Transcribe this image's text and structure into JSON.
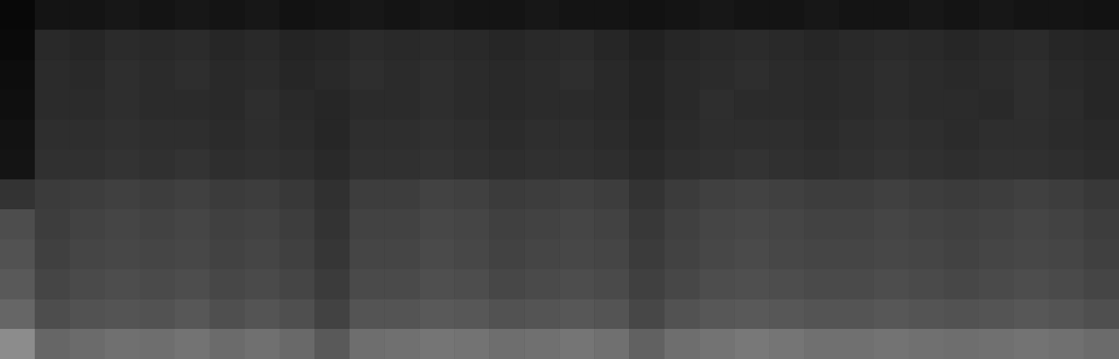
{
  "chart_data": {
    "type": "heatmap",
    "tick_labels": false,
    "color_range": [
      0,
      100
    ],
    "cells": [
      [
        3,
        8,
        8,
        9,
        8,
        9,
        8,
        9,
        7,
        8,
        9,
        8,
        9,
        8,
        8,
        9,
        8,
        8,
        7,
        8,
        9,
        8,
        8,
        9,
        8,
        8,
        9,
        8,
        9,
        8,
        8,
        7
      ],
      [
        4,
        16,
        15,
        17,
        16,
        17,
        15,
        16,
        14,
        15,
        17,
        16,
        17,
        16,
        15,
        16,
        17,
        15,
        13,
        15,
        16,
        17,
        16,
        15,
        16,
        17,
        16,
        15,
        16,
        17,
        15,
        14
      ],
      [
        5,
        17,
        16,
        18,
        17,
        18,
        16,
        17,
        15,
        16,
        18,
        17,
        18,
        17,
        16,
        17,
        18,
        16,
        14,
        16,
        17,
        18,
        17,
        16,
        17,
        18,
        17,
        16,
        17,
        18,
        16,
        15
      ],
      [
        6,
        17,
        17,
        18,
        17,
        17,
        16,
        18,
        16,
        15,
        17,
        17,
        18,
        17,
        16,
        17,
        17,
        16,
        14,
        16,
        18,
        17,
        17,
        16,
        17,
        18,
        17,
        17,
        16,
        18,
        17,
        15
      ],
      [
        7,
        18,
        18,
        19,
        18,
        18,
        17,
        18,
        17,
        15,
        18,
        18,
        19,
        18,
        17,
        18,
        18,
        17,
        15,
        17,
        18,
        18,
        18,
        17,
        18,
        19,
        18,
        17,
        18,
        18,
        17,
        16
      ],
      [
        8,
        19,
        19,
        20,
        19,
        20,
        18,
        19,
        18,
        16,
        19,
        19,
        20,
        19,
        18,
        19,
        19,
        18,
        16,
        18,
        19,
        20,
        19,
        18,
        19,
        20,
        19,
        18,
        19,
        19,
        18,
        17
      ],
      [
        20,
        23,
        24,
        25,
        24,
        25,
        23,
        24,
        22,
        19,
        24,
        24,
        26,
        25,
        23,
        24,
        25,
        24,
        20,
        23,
        25,
        26,
        25,
        24,
        24,
        25,
        24,
        23,
        24,
        25,
        24,
        22
      ],
      [
        30,
        24,
        26,
        27,
        26,
        27,
        25,
        26,
        24,
        20,
        26,
        26,
        28,
        27,
        25,
        26,
        27,
        26,
        22,
        25,
        27,
        28,
        27,
        26,
        26,
        27,
        26,
        25,
        26,
        27,
        26,
        24
      ],
      [
        32,
        25,
        27,
        28,
        27,
        28,
        26,
        27,
        25,
        21,
        27,
        27,
        29,
        28,
        26,
        27,
        28,
        27,
        23,
        26,
        28,
        29,
        28,
        27,
        27,
        28,
        27,
        26,
        27,
        28,
        27,
        25
      ],
      [
        35,
        27,
        29,
        30,
        29,
        30,
        28,
        29,
        27,
        23,
        29,
        29,
        31,
        30,
        28,
        29,
        30,
        29,
        25,
        28,
        30,
        31,
        30,
        29,
        29,
        30,
        29,
        28,
        29,
        30,
        29,
        27
      ],
      [
        40,
        30,
        32,
        33,
        32,
        34,
        31,
        33,
        31,
        26,
        33,
        33,
        35,
        34,
        32,
        33,
        34,
        33,
        28,
        32,
        34,
        35,
        34,
        33,
        33,
        34,
        33,
        32,
        33,
        34,
        33,
        31
      ],
      [
        55,
        40,
        42,
        44,
        43,
        45,
        42,
        44,
        41,
        35,
        43,
        44,
        46,
        45,
        43,
        44,
        46,
        44,
        38,
        43,
        45,
        47,
        46,
        44,
        44,
        45,
        44,
        43,
        44,
        45,
        44,
        42
      ]
    ]
  }
}
